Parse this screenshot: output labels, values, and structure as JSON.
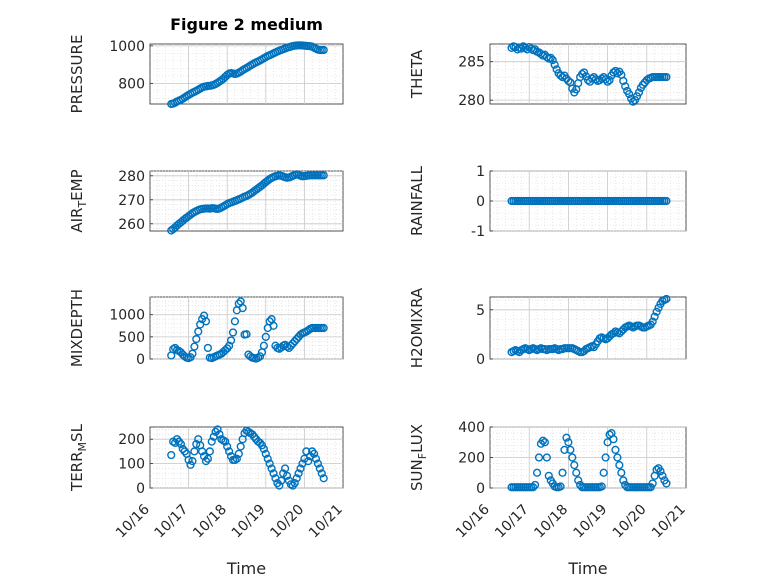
{
  "chart_data": [
    {
      "type": "scatter",
      "title": "Figure 2 medium",
      "ylabel": "PRESSURE",
      "xlabel": "",
      "xlim": [
        0,
        5
      ],
      "ylim": [
        690,
        1010
      ],
      "yticks": [
        800,
        1000
      ],
      "xticklabels": [],
      "x": [
        0.55,
        0.6,
        0.65,
        0.7,
        0.75,
        0.8,
        0.85,
        0.9,
        0.95,
        1.0,
        1.05,
        1.1,
        1.15,
        1.2,
        1.25,
        1.3,
        1.35,
        1.4,
        1.45,
        1.5,
        1.55,
        1.6,
        1.65,
        1.7,
        1.75,
        1.8,
        1.85,
        1.9,
        1.95,
        2.0,
        2.05,
        2.1,
        2.15,
        2.2,
        2.25,
        2.3,
        2.35,
        2.4,
        2.45,
        2.5,
        2.55,
        2.6,
        2.65,
        2.7,
        2.75,
        2.8,
        2.85,
        2.9,
        2.95,
        3.0,
        3.05,
        3.1,
        3.15,
        3.2,
        3.25,
        3.3,
        3.35,
        3.4,
        3.45,
        3.5,
        3.55,
        3.6,
        3.65,
        3.7,
        3.75,
        3.8,
        3.85,
        3.9,
        3.95,
        4.0,
        4.05,
        4.1,
        4.15,
        4.2,
        4.25,
        4.3,
        4.35,
        4.4,
        4.45,
        4.5
      ],
      "y": [
        690,
        692,
        697,
        703,
        708,
        712,
        718,
        725,
        732,
        738,
        744,
        750,
        755,
        760,
        766,
        772,
        778,
        782,
        784,
        786,
        787,
        789,
        792,
        797,
        803,
        810,
        817,
        825,
        835,
        845,
        852,
        855,
        853,
        850,
        852,
        857,
        863,
        870,
        876,
        882,
        888,
        895,
        901,
        907,
        912,
        917,
        922,
        928,
        934,
        940,
        946,
        950,
        955,
        960,
        965,
        970,
        974,
        978,
        982,
        986,
        990,
        993,
        996,
        999,
        1001,
        1002,
        1003,
        1003,
        1002,
        1001,
        1000,
        999,
        998,
        996,
        990,
        985,
        980,
        978,
        978,
        978
      ]
    },
    {
      "type": "scatter",
      "title": "",
      "ylabel": "THETA",
      "xlabel": "",
      "xlim": [
        0,
        5
      ],
      "ylim": [
        279.5,
        287.3
      ],
      "yticks": [
        280,
        285
      ],
      "xticklabels": [],
      "x": [
        0.55,
        0.6,
        0.65,
        0.7,
        0.75,
        0.8,
        0.85,
        0.9,
        0.95,
        1.0,
        1.05,
        1.1,
        1.15,
        1.2,
        1.25,
        1.3,
        1.35,
        1.4,
        1.45,
        1.5,
        1.55,
        1.6,
        1.65,
        1.7,
        1.75,
        1.8,
        1.85,
        1.9,
        1.95,
        2.0,
        2.05,
        2.1,
        2.15,
        2.2,
        2.25,
        2.3,
        2.35,
        2.4,
        2.45,
        2.5,
        2.55,
        2.6,
        2.65,
        2.7,
        2.75,
        2.8,
        2.85,
        2.9,
        2.95,
        3.0,
        3.05,
        3.1,
        3.15,
        3.2,
        3.25,
        3.3,
        3.35,
        3.4,
        3.45,
        3.5,
        3.55,
        3.6,
        3.65,
        3.7,
        3.75,
        3.8,
        3.85,
        3.9,
        3.95,
        4.0,
        4.05,
        4.1,
        4.15,
        4.2,
        4.25,
        4.3,
        4.35,
        4.4,
        4.45,
        4.5
      ],
      "y": [
        286.8,
        287.0,
        286.9,
        286.6,
        286.8,
        286.7,
        287.0,
        286.8,
        286.6,
        286.9,
        286.7,
        286.5,
        286.6,
        286.3,
        286.2,
        286.0,
        285.8,
        285.9,
        285.6,
        285.4,
        285.5,
        285.2,
        284.6,
        284.0,
        283.5,
        283.2,
        283.0,
        283.2,
        282.8,
        282.5,
        282.3,
        281.5,
        281.0,
        281.4,
        282.2,
        283.0,
        283.4,
        283.6,
        283.1,
        282.6,
        282.4,
        282.8,
        283.0,
        282.7,
        282.5,
        282.6,
        282.8,
        283.0,
        282.7,
        282.4,
        282.6,
        283.2,
        283.6,
        283.8,
        283.5,
        283.7,
        283.3,
        282.5,
        281.8,
        281.2,
        280.8,
        280.2,
        279.8,
        280.0,
        280.5,
        281.0,
        281.6,
        282.0,
        282.3,
        282.6,
        282.8,
        282.9,
        283.0,
        283.0,
        283.0,
        283.0,
        283.0,
        283.0,
        283.0,
        283.0
      ]
    },
    {
      "type": "scatter",
      "title": "",
      "ylabel": "AIR_TEMP",
      "xlabel": "",
      "xlim": [
        0,
        5
      ],
      "ylim": [
        257,
        282
      ],
      "yticks": [
        260,
        270,
        280
      ],
      "xticklabels": [],
      "x": [
        0.55,
        0.6,
        0.65,
        0.7,
        0.75,
        0.8,
        0.85,
        0.9,
        0.95,
        1.0,
        1.05,
        1.1,
        1.15,
        1.2,
        1.25,
        1.3,
        1.35,
        1.4,
        1.45,
        1.5,
        1.55,
        1.6,
        1.65,
        1.7,
        1.75,
        1.8,
        1.85,
        1.9,
        1.95,
        2.0,
        2.05,
        2.1,
        2.15,
        2.2,
        2.25,
        2.3,
        2.35,
        2.4,
        2.45,
        2.5,
        2.55,
        2.6,
        2.65,
        2.7,
        2.75,
        2.8,
        2.85,
        2.9,
        2.95,
        3.0,
        3.05,
        3.1,
        3.15,
        3.2,
        3.25,
        3.3,
        3.35,
        3.4,
        3.45,
        3.5,
        3.55,
        3.6,
        3.65,
        3.7,
        3.75,
        3.8,
        3.85,
        3.9,
        3.95,
        4.0,
        4.05,
        4.1,
        4.15,
        4.2,
        4.25,
        4.3,
        4.35,
        4.4,
        4.45,
        4.5
      ],
      "y": [
        257.2,
        257.8,
        258.5,
        259.3,
        260.0,
        260.6,
        261.3,
        262.0,
        262.6,
        263.2,
        263.8,
        264.4,
        264.9,
        265.3,
        265.7,
        266.0,
        266.2,
        266.3,
        266.4,
        266.4,
        266.3,
        266.5,
        266.5,
        266.3,
        266.2,
        266.4,
        266.8,
        267.2,
        267.7,
        268.2,
        268.6,
        268.9,
        269.2,
        269.5,
        269.8,
        270.2,
        270.5,
        270.9,
        271.3,
        271.6,
        272.0,
        272.5,
        273.0,
        273.6,
        274.2,
        274.8,
        275.4,
        276.0,
        276.7,
        277.4,
        278.0,
        278.6,
        279.1,
        279.5,
        279.8,
        280.0,
        280.2,
        280.0,
        279.7,
        279.4,
        279.2,
        279.3,
        279.6,
        280.0,
        280.3,
        280.6,
        280.4,
        280.0,
        279.8,
        279.9,
        280.0,
        280.1,
        280.2,
        280.2,
        280.2,
        280.2,
        280.2,
        280.2,
        280.2,
        280.2
      ]
    },
    {
      "type": "scatter",
      "title": "",
      "ylabel": "RAINFALL",
      "xlabel": "",
      "xlim": [
        0,
        5
      ],
      "ylim": [
        -1,
        1
      ],
      "yticks": [
        -1,
        0,
        1
      ],
      "xticklabels": [],
      "x": [
        0.55,
        0.6,
        0.65,
        0.7,
        0.75,
        0.8,
        0.85,
        0.9,
        0.95,
        1.0,
        1.05,
        1.1,
        1.15,
        1.2,
        1.25,
        1.3,
        1.35,
        1.4,
        1.45,
        1.5,
        1.55,
        1.6,
        1.65,
        1.7,
        1.75,
        1.8,
        1.85,
        1.9,
        1.95,
        2.0,
        2.05,
        2.1,
        2.15,
        2.2,
        2.25,
        2.3,
        2.35,
        2.4,
        2.45,
        2.5,
        2.55,
        2.6,
        2.65,
        2.7,
        2.75,
        2.8,
        2.85,
        2.9,
        2.95,
        3.0,
        3.05,
        3.1,
        3.15,
        3.2,
        3.25,
        3.3,
        3.35,
        3.4,
        3.45,
        3.5,
        3.55,
        3.6,
        3.65,
        3.7,
        3.75,
        3.8,
        3.85,
        3.9,
        3.95,
        4.0,
        4.05,
        4.1,
        4.15,
        4.2,
        4.25,
        4.3,
        4.35,
        4.4,
        4.45,
        4.5
      ],
      "y": [
        0,
        0,
        0,
        0,
        0,
        0,
        0,
        0,
        0,
        0,
        0,
        0,
        0,
        0,
        0,
        0,
        0,
        0,
        0,
        0,
        0,
        0,
        0,
        0,
        0,
        0,
        0,
        0,
        0,
        0,
        0,
        0,
        0,
        0,
        0,
        0,
        0,
        0,
        0,
        0,
        0,
        0,
        0,
        0,
        0,
        0,
        0,
        0,
        0,
        0,
        0,
        0,
        0,
        0,
        0,
        0,
        0,
        0,
        0,
        0,
        0,
        0,
        0,
        0,
        0,
        0,
        0,
        0,
        0,
        0,
        0,
        0,
        0,
        0,
        0,
        0,
        0,
        0,
        0,
        0
      ]
    },
    {
      "type": "scatter",
      "title": "",
      "ylabel": "MIXDEPTH",
      "xlabel": "",
      "xlim": [
        0,
        5
      ],
      "ylim": [
        0,
        1400
      ],
      "yticks": [
        0,
        500,
        1000
      ],
      "xticklabels": [],
      "x": [
        0.55,
        0.6,
        0.65,
        0.7,
        0.75,
        0.8,
        0.85,
        0.9,
        0.95,
        1.0,
        1.05,
        1.1,
        1.15,
        1.2,
        1.25,
        1.3,
        1.35,
        1.4,
        1.45,
        1.5,
        1.55,
        1.6,
        1.65,
        1.7,
        1.75,
        1.8,
        1.85,
        1.9,
        1.95,
        2.0,
        2.05,
        2.1,
        2.15,
        2.2,
        2.25,
        2.3,
        2.35,
        2.4,
        2.45,
        2.5,
        2.55,
        2.6,
        2.65,
        2.7,
        2.75,
        2.8,
        2.85,
        2.9,
        2.95,
        3.0,
        3.05,
        3.1,
        3.15,
        3.2,
        3.25,
        3.3,
        3.35,
        3.4,
        3.45,
        3.5,
        3.55,
        3.6,
        3.65,
        3.7,
        3.75,
        3.8,
        3.85,
        3.9,
        3.95,
        4.0,
        4.05,
        4.1,
        4.15,
        4.2,
        4.25,
        4.3,
        4.35,
        4.4,
        4.45,
        4.5
      ],
      "y": [
        80,
        220,
        250,
        200,
        180,
        150,
        100,
        60,
        30,
        20,
        40,
        120,
        280,
        450,
        620,
        780,
        900,
        980,
        850,
        250,
        30,
        20,
        40,
        60,
        80,
        100,
        120,
        160,
        200,
        240,
        300,
        420,
        600,
        850,
        1100,
        1250,
        1300,
        1150,
        550,
        560,
        100,
        60,
        30,
        20,
        10,
        30,
        60,
        150,
        300,
        500,
        700,
        850,
        900,
        750,
        300,
        250,
        230,
        260,
        300,
        320,
        280,
        250,
        300,
        350,
        400,
        450,
        500,
        550,
        580,
        600,
        620,
        650,
        680,
        700,
        700,
        700,
        700,
        700,
        700,
        700
      ]
    },
    {
      "type": "scatter",
      "title": "",
      "ylabel": "H2OMIXRA",
      "xlabel": "",
      "xlim": [
        0,
        5
      ],
      "ylim": [
        0,
        6.3
      ],
      "yticks": [
        0,
        5
      ],
      "xticklabels": [],
      "x": [
        0.55,
        0.6,
        0.65,
        0.7,
        0.75,
        0.8,
        0.85,
        0.9,
        0.95,
        1.0,
        1.05,
        1.1,
        1.15,
        1.2,
        1.25,
        1.3,
        1.35,
        1.4,
        1.45,
        1.5,
        1.55,
        1.6,
        1.65,
        1.7,
        1.75,
        1.8,
        1.85,
        1.9,
        1.95,
        2.0,
        2.05,
        2.1,
        2.15,
        2.2,
        2.25,
        2.3,
        2.35,
        2.4,
        2.45,
        2.5,
        2.55,
        2.6,
        2.65,
        2.7,
        2.75,
        2.8,
        2.85,
        2.9,
        2.95,
        3.0,
        3.05,
        3.1,
        3.15,
        3.2,
        3.25,
        3.3,
        3.35,
        3.4,
        3.45,
        3.5,
        3.55,
        3.6,
        3.65,
        3.7,
        3.75,
        3.8,
        3.85,
        3.9,
        3.95,
        4.0,
        4.05,
        4.1,
        4.15,
        4.2,
        4.25,
        4.3,
        4.35,
        4.4,
        4.45,
        4.5
      ],
      "y": [
        0.7,
        0.8,
        0.9,
        0.8,
        0.7,
        0.9,
        1.0,
        1.1,
        1.0,
        0.9,
        1.0,
        1.1,
        1.0,
        0.9,
        1.0,
        1.1,
        1.0,
        1.0,
        0.9,
        1.0,
        1.0,
        1.0,
        1.1,
        1.0,
        0.9,
        1.0,
        1.0,
        1.1,
        1.1,
        1.1,
        1.1,
        1.1,
        1.0,
        0.9,
        0.8,
        0.7,
        0.7,
        0.8,
        1.0,
        1.1,
        1.2,
        1.3,
        1.2,
        1.5,
        1.8,
        2.1,
        2.2,
        2.1,
        2.0,
        2.1,
        2.3,
        2.5,
        2.6,
        2.8,
        2.7,
        2.6,
        2.8,
        3.0,
        3.2,
        3.3,
        3.4,
        3.3,
        3.2,
        3.3,
        3.4,
        3.4,
        3.3,
        3.2,
        3.2,
        3.3,
        3.4,
        3.5,
        3.8,
        4.3,
        4.8,
        5.2,
        5.6,
        5.9,
        6.0,
        6.1
      ]
    },
    {
      "type": "scatter",
      "title": "",
      "ylabel": "TERR_MSL",
      "xlabel": "Time",
      "xlim": [
        0,
        5
      ],
      "ylim": [
        0,
        250
      ],
      "yticks": [
        0,
        100,
        200
      ],
      "xticklabels": [
        "10/16",
        "10/17",
        "10/18",
        "10/19",
        "10/20",
        "10/21"
      ],
      "x": [
        0.55,
        0.6,
        0.65,
        0.7,
        0.75,
        0.8,
        0.85,
        0.9,
        0.95,
        1.0,
        1.05,
        1.1,
        1.15,
        1.2,
        1.25,
        1.3,
        1.35,
        1.4,
        1.45,
        1.5,
        1.55,
        1.6,
        1.65,
        1.7,
        1.75,
        1.8,
        1.85,
        1.9,
        1.95,
        2.0,
        2.05,
        2.1,
        2.15,
        2.2,
        2.25,
        2.3,
        2.35,
        2.4,
        2.45,
        2.5,
        2.55,
        2.6,
        2.65,
        2.7,
        2.75,
        2.8,
        2.85,
        2.9,
        2.95,
        3.0,
        3.05,
        3.1,
        3.15,
        3.2,
        3.25,
        3.3,
        3.35,
        3.4,
        3.45,
        3.5,
        3.55,
        3.6,
        3.65,
        3.7,
        3.75,
        3.8,
        3.85,
        3.9,
        3.95,
        4.0,
        4.05,
        4.1,
        4.15,
        4.2,
        4.25,
        4.3,
        4.35,
        4.4,
        4.45,
        4.5
      ],
      "y": [
        135,
        190,
        185,
        200,
        190,
        180,
        160,
        150,
        140,
        115,
        95,
        110,
        150,
        180,
        200,
        175,
        150,
        130,
        110,
        120,
        150,
        190,
        210,
        230,
        240,
        220,
        200,
        195,
        190,
        170,
        150,
        130,
        115,
        115,
        120,
        140,
        170,
        200,
        225,
        235,
        230,
        225,
        220,
        210,
        200,
        190,
        185,
        175,
        160,
        140,
        120,
        100,
        80,
        60,
        40,
        20,
        10,
        30,
        60,
        80,
        50,
        30,
        15,
        10,
        20,
        40,
        60,
        80,
        100,
        120,
        150,
        110,
        130,
        150,
        140,
        120,
        100,
        80,
        60,
        40
      ]
    },
    {
      "type": "scatter",
      "title": "",
      "ylabel": "SUN_FLUX",
      "xlabel": "Time",
      "xlim": [
        0,
        5
      ],
      "ylim": [
        0,
        400
      ],
      "yticks": [
        0,
        200,
        400
      ],
      "xticklabels": [
        "10/16",
        "10/17",
        "10/18",
        "10/19",
        "10/20",
        "10/21"
      ],
      "x": [
        0.55,
        0.6,
        0.65,
        0.7,
        0.75,
        0.8,
        0.85,
        0.9,
        0.95,
        1.0,
        1.05,
        1.1,
        1.15,
        1.2,
        1.25,
        1.3,
        1.35,
        1.4,
        1.45,
        1.5,
        1.55,
        1.6,
        1.65,
        1.7,
        1.75,
        1.8,
        1.85,
        1.9,
        1.95,
        2.0,
        2.05,
        2.1,
        2.15,
        2.2,
        2.25,
        2.3,
        2.35,
        2.4,
        2.45,
        2.5,
        2.55,
        2.6,
        2.65,
        2.7,
        2.75,
        2.8,
        2.85,
        2.9,
        2.95,
        3.0,
        3.05,
        3.1,
        3.15,
        3.2,
        3.25,
        3.3,
        3.35,
        3.4,
        3.45,
        3.5,
        3.55,
        3.6,
        3.65,
        3.7,
        3.75,
        3.8,
        3.85,
        3.9,
        3.95,
        4.0,
        4.05,
        4.1,
        4.15,
        4.2,
        4.25,
        4.3,
        4.35,
        4.4,
        4.45,
        4.5
      ],
      "y": [
        5,
        5,
        5,
        5,
        5,
        5,
        5,
        5,
        5,
        5,
        5,
        5,
        20,
        100,
        200,
        290,
        310,
        300,
        200,
        80,
        50,
        30,
        10,
        5,
        5,
        10,
        100,
        250,
        330,
        300,
        250,
        200,
        150,
        100,
        50,
        20,
        5,
        5,
        5,
        5,
        5,
        5,
        5,
        5,
        5,
        5,
        10,
        100,
        200,
        300,
        350,
        360,
        320,
        250,
        200,
        150,
        100,
        50,
        20,
        5,
        5,
        5,
        5,
        5,
        5,
        5,
        5,
        5,
        5,
        5,
        5,
        5,
        30,
        80,
        120,
        130,
        110,
        80,
        50,
        30
      ]
    }
  ]
}
